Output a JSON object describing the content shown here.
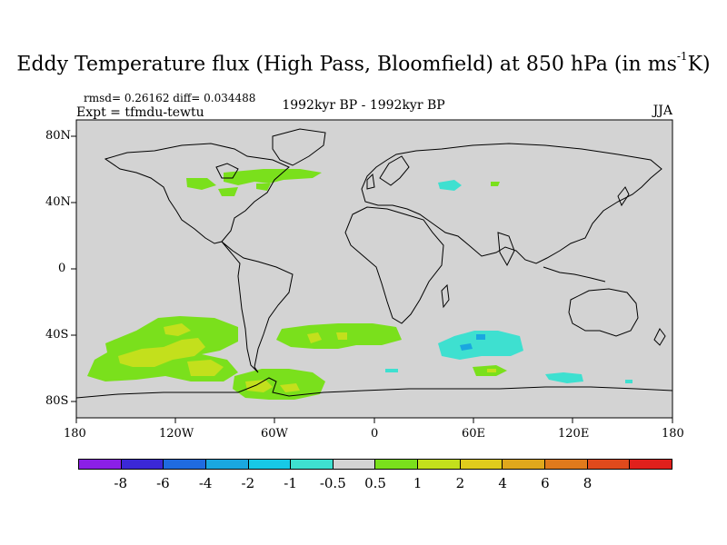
{
  "title_main": "Eddy Temperature flux (High Pass, Bloomfield) at 850 hPa (in ms",
  "title_sup": "-1",
  "title_end": "K)",
  "stats": "rmsd= 0.26162 diff= 0.034488",
  "expt": "Expt = tfmdu-tewtu",
  "period": "1992kyr BP - 1992kyr BP",
  "season": "JJA",
  "colors": {
    "land_ocean": "#d3d3d3",
    "coast": "#000000"
  },
  "map_data": {
    "projection": "cylindrical-equidistant",
    "lon_range": [
      -180,
      180
    ],
    "lat_range": [
      -90,
      90
    ],
    "lon_ticks": [
      "180",
      "120W",
      "60W",
      "0",
      "60E",
      "120E",
      "180"
    ],
    "lat_ticks": [
      "80N",
      "40N",
      "0",
      "40S",
      "80S"
    ]
  },
  "colorbar": {
    "colors": [
      "#8b1fe6",
      "#3b28d6",
      "#1f6be0",
      "#1aa7e0",
      "#17c9e6",
      "#3ee0d0",
      "#d3d3d3",
      "#7ae01c",
      "#c3e01c",
      "#e0cc1c",
      "#e0a81c",
      "#e07a1c",
      "#e04a1c",
      "#e0201c"
    ],
    "labels": [
      "-8",
      "-6",
      "-4",
      "-2",
      "-1",
      "-0.5",
      "0.5",
      "1",
      "2",
      "4",
      "6",
      "8"
    ]
  }
}
